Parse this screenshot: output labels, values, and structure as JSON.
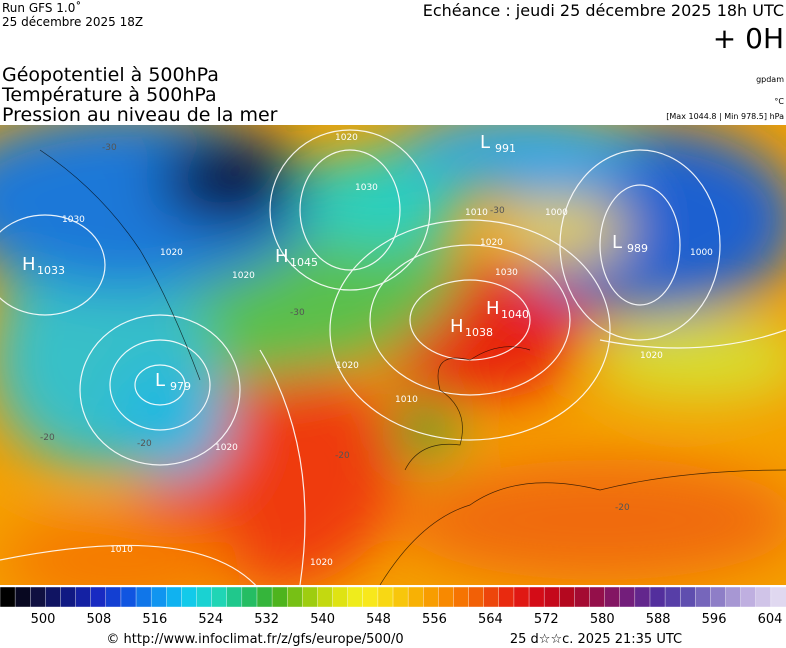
{
  "header": {
    "run": "Run GFS 1.0˚",
    "date": "25 décembre 2025 18Z",
    "echeance": "Echéance : jeudi 25 décembre 2025 18h UTC",
    "offset": "+ 0H"
  },
  "titles": [
    "Géopotentiel à 500hPa",
    "Température à 500hPa",
    "Pression au niveau de la mer"
  ],
  "units": {
    "geopotential": "gpdam",
    "temperature": "°C",
    "range": "[Max 1044.8 | Min 978.5] hPa"
  },
  "map": {
    "centers": [
      {
        "letter": "H",
        "value": "1033"
      },
      {
        "letter": "H",
        "value": "1045"
      },
      {
        "letter": "L",
        "value": "991"
      },
      {
        "letter": "L",
        "value": "989"
      },
      {
        "letter": "H",
        "value": "1040"
      },
      {
        "letter": "H",
        "value": "1038"
      },
      {
        "letter": "L",
        "value": "979"
      }
    ],
    "contour_labels": [
      "1020",
      "1030",
      "1030",
      "1020",
      "1010",
      "1000",
      "1020",
      "1030",
      "1020",
      "1000",
      "1020",
      "1020",
      "1010",
      "1020",
      "1020",
      "1010",
      "-30",
      "-30",
      "-20",
      "-20",
      "-20",
      "-30",
      "-20"
    ]
  },
  "colorbar": {
    "labels": [
      "500",
      "508",
      "516",
      "524",
      "532",
      "540",
      "548",
      "556",
      "564",
      "572",
      "580",
      "588",
      "596",
      "604"
    ]
  },
  "footer": {
    "source": "© http://www.infoclimat.fr/z/gfs/europe/500/0",
    "generated": "25 d☆☆c. 2025 21:35 UTC"
  }
}
